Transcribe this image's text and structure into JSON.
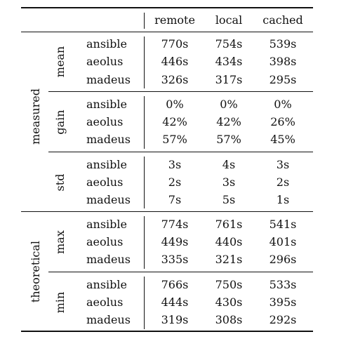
{
  "columns": [
    "remote",
    "local",
    "cached"
  ],
  "groups": [
    {
      "label": "measured",
      "subgroups": [
        {
          "label": "mean",
          "rows": [
            {
              "label": "ansible",
              "values": [
                "770s",
                "754s",
                "539s"
              ]
            },
            {
              "label": "aeolus",
              "values": [
                "446s",
                "434s",
                "398s"
              ]
            },
            {
              "label": "madeus",
              "values": [
                "326s",
                "317s",
                "295s"
              ]
            }
          ]
        },
        {
          "label": "gain",
          "rows": [
            {
              "label": "ansible",
              "values": [
                "0%",
                "0%",
                "0%"
              ]
            },
            {
              "label": "aeolus",
              "values": [
                "42%",
                "42%",
                "26%"
              ]
            },
            {
              "label": "madeus",
              "values": [
                "57%",
                "57%",
                "45%"
              ]
            }
          ]
        },
        {
          "label": "std",
          "rows": [
            {
              "label": "ansible",
              "values": [
                "3s",
                "4s",
                "3s"
              ]
            },
            {
              "label": "aeolus",
              "values": [
                "2s",
                "3s",
                "2s"
              ]
            },
            {
              "label": "madeus",
              "values": [
                "7s",
                "5s",
                "1s"
              ]
            }
          ]
        }
      ]
    },
    {
      "label": "theoretical",
      "subgroups": [
        {
          "label": "max",
          "rows": [
            {
              "label": "ansible",
              "values": [
                "774s",
                "761s",
                "541s"
              ]
            },
            {
              "label": "aeolus",
              "values": [
                "449s",
                "440s",
                "401s"
              ]
            },
            {
              "label": "madeus",
              "values": [
                "335s",
                "321s",
                "296s"
              ]
            }
          ]
        },
        {
          "label": "min",
          "rows": [
            {
              "label": "ansible",
              "values": [
                "766s",
                "750s",
                "533s"
              ]
            },
            {
              "label": "aeolus",
              "values": [
                "444s",
                "430s",
                "395s"
              ]
            },
            {
              "label": "madeus",
              "values": [
                "319s",
                "308s",
                "292s"
              ]
            }
          ]
        }
      ]
    }
  ]
}
